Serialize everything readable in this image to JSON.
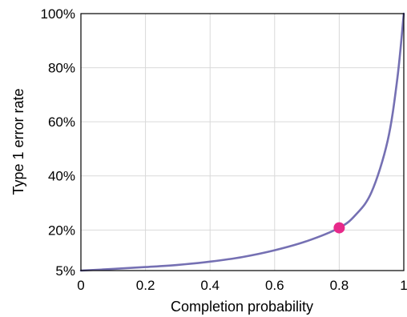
{
  "chart_data": {
    "type": "line",
    "title": "",
    "xlabel": "Completion probability",
    "ylabel": "Type 1 error rate",
    "xlim": [
      0,
      1
    ],
    "ylim": [
      5,
      100
    ],
    "x_ticks": [
      0,
      0.2,
      0.4,
      0.6,
      0.8,
      1
    ],
    "x_tick_labels": [
      "0",
      "0.2",
      "0.4",
      "0.6",
      "0.8",
      "1"
    ],
    "y_ticks": [
      5,
      20,
      40,
      60,
      80,
      100
    ],
    "y_tick_labels": [
      "5%",
      "20%",
      "40%",
      "60%",
      "80%",
      "100%"
    ],
    "grid": true,
    "series": [
      {
        "color": "#7570b3",
        "x": [
          0,
          0.1,
          0.2,
          0.3,
          0.4,
          0.5,
          0.6,
          0.7,
          0.8,
          0.85,
          0.9,
          0.95,
          0.98,
          1
        ],
        "y": [
          5,
          5.6,
          6.3,
          7.1,
          8.3,
          10,
          12.5,
          15.9,
          20.8,
          25.5,
          34,
          53,
          76,
          100
        ]
      }
    ],
    "highlight_point": {
      "x": 0.8,
      "y": 20.8,
      "color": "#e7298a"
    }
  }
}
